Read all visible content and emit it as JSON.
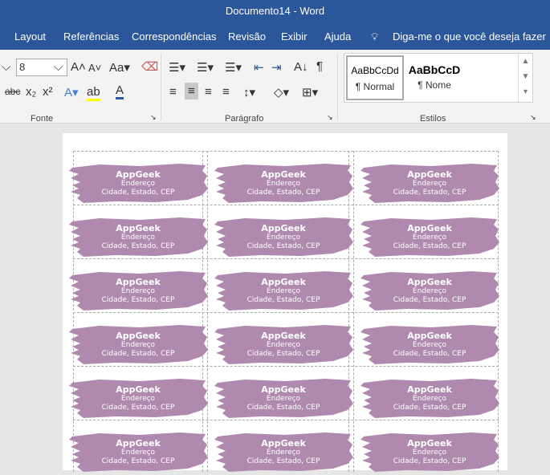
{
  "window": {
    "title": "Documento14  -  Word"
  },
  "menu": [
    "Layout",
    "Referências",
    "Correspondências",
    "Revisão",
    "Exibir",
    "Ajuda"
  ],
  "tell_me": "Diga-me o que você deseja fazer",
  "ribbon": {
    "font_size": "8",
    "groups": {
      "font": "Fonte",
      "paragraph": "Parágrafo",
      "styles": "Estilos"
    },
    "styles": [
      {
        "preview": "AaBbCcDd",
        "name": "¶ Normal"
      },
      {
        "preview": "AaBbCcD",
        "name": "¶ Nome"
      }
    ]
  },
  "label": {
    "name": "AppGeek",
    "address": "Endereço",
    "city": "Cidade, Estado, CEP",
    "color": "#b08aae"
  }
}
